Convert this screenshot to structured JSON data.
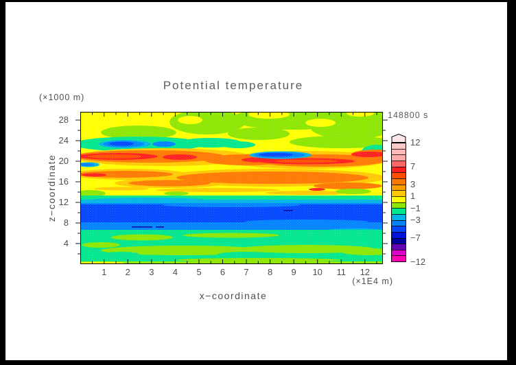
{
  "title": "Potential temperature",
  "time_label": "148800 s",
  "axes": {
    "x": {
      "label": "x−coordinate",
      "unit_label": "(×1E4 m)",
      "tick_labels": [
        "1",
        "2",
        "3",
        "4",
        "5",
        "6",
        "7",
        "8",
        "9",
        "10",
        "11",
        "12"
      ]
    },
    "y": {
      "label": "z−coordinate",
      "unit_label": "(×1000 m)",
      "tick_labels": [
        "28",
        "24",
        "20",
        "16",
        "12",
        "8",
        "4"
      ]
    }
  },
  "colorbar": {
    "num_segments": 20,
    "segment_colors": [
      "#FFC8C8",
      "#FFB9B9",
      "#FFA9A9",
      "#FF6666",
      "#FF1E1E",
      "#FF4E00",
      "#FF7800",
      "#FFA000",
      "#FFC800",
      "#FFFF00",
      "#8CE600",
      "#00E68C",
      "#00B4E6",
      "#0082FF",
      "#0046FF",
      "#0014DC",
      "#0000A0",
      "#6400B4",
      "#DC00C8",
      "#FF00B4"
    ],
    "tick_labels": [
      "12",
      "7",
      "3",
      "1",
      "−1",
      "−3",
      "−7",
      "−12"
    ],
    "tick_segment_positions": [
      0,
      4,
      7,
      9,
      11,
      13,
      16,
      20
    ],
    "arrow_cap_color": "#FFE6E6"
  },
  "chart_data": {
    "type": "heatmap",
    "subtype": "filled-contour cross-section",
    "title": "Potential temperature",
    "time": "148800 s",
    "xlabel": "x−coordinate",
    "x_unit": "×1E4 m",
    "x_range": [
      0,
      12.8
    ],
    "x_ticks": [
      1,
      2,
      3,
      4,
      5,
      6,
      7,
      8,
      9,
      10,
      11,
      12
    ],
    "ylabel": "z−coordinate",
    "y_unit": "×1000 m",
    "y_range": [
      0,
      29.6
    ],
    "y_ticks": [
      4,
      8,
      12,
      16,
      20,
      24,
      28
    ],
    "grid": "fine white stipple mesh over filled contours",
    "legend_position": "right colorbar with top overflow arrow",
    "colorbar_tick_values": [
      12,
      7,
      3,
      1,
      -1,
      -3,
      -7,
      -12
    ],
    "palette_top_to_bottom": [
      "#FFC8C8",
      "#FFB9B9",
      "#FFA9A9",
      "#FF6666",
      "#FF1E1E",
      "#FF4E00",
      "#FF7800",
      "#FFA000",
      "#FFC800",
      "#FFFF00",
      "#8CE600",
      "#00E68C",
      "#00B4E6",
      "#0082FF",
      "#0046FF",
      "#0014DC",
      "#0000A0",
      "#6400B4",
      "#DC00C8",
      "#FF00B4"
    ],
    "field_summary_bands": [
      {
        "z_km": [
          23.0,
          29.6
        ],
        "approx_value": 1.5,
        "appearance": "yellow with yellow-green patches"
      },
      {
        "z_km": [
          21.5,
          23.5
        ],
        "approx_value": -1.5,
        "appearance": "green band; blue pockets (-3 to -5) near x=1-4 and x=12.5"
      },
      {
        "z_km": [
          18.5,
          21.5
        ],
        "approx_value": 5,
        "appearance": "orange band with red streaks up to ~7; embedded blue streak (-4) near x=7-9.5"
      },
      {
        "z_km": [
          14.5,
          18.5
        ],
        "approx_value": 3,
        "appearance": "orange streaks alternating with yellow"
      },
      {
        "z_km": [
          12.3,
          14.5
        ],
        "approx_value": 1.5,
        "appearance": "yellow with thin amber streaks and small green patches"
      },
      {
        "z_km": [
          11.3,
          12.3
        ],
        "approx_value": -1.5,
        "appearance": "green/cyan transition band"
      },
      {
        "z_km": [
          8.2,
          11.3
        ],
        "approx_value": -4.5,
        "appearance": "solid blue band (field minimum), tiny navy dashes"
      },
      {
        "z_km": [
          6.8,
          8.2
        ],
        "approx_value": -3,
        "appearance": "light blue / cyan band"
      },
      {
        "z_km": [
          2.5,
          6.8
        ],
        "approx_value": -1.5,
        "appearance": "green with yellow-green (-0.5) streaks"
      },
      {
        "z_km": [
          0.5,
          2.5
        ],
        "approx_value": -0.5,
        "appearance": "yellow-green band over green"
      },
      {
        "z_km": [
          0.0,
          0.5
        ],
        "approx_value": 0.5,
        "appearance": "yellow / yellow-green surface strip"
      }
    ]
  }
}
